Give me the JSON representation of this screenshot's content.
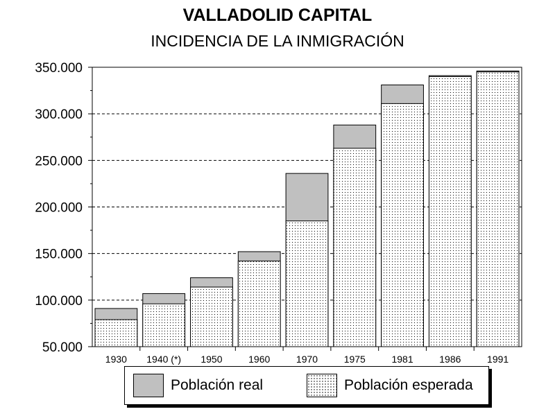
{
  "chart_data": {
    "type": "bar",
    "title": "VALLADOLID CAPITAL",
    "subtitle": "INCIDENCIA DE LA INMIGRACIÓN",
    "categories": [
      "1930",
      "1940 (*)",
      "1950",
      "1960",
      "1970",
      "1975",
      "1981",
      "1986",
      "1991"
    ],
    "series": [
      {
        "name": "Población real",
        "values": [
          91000,
          107000,
          124000,
          152000,
          236000,
          288000,
          331000,
          341000,
          346000
        ],
        "color": "#c0c0c0",
        "pattern": "solid"
      },
      {
        "name": "Población esperada",
        "values": [
          79000,
          96000,
          114000,
          142000,
          185000,
          263000,
          311000,
          340000,
          345000
        ],
        "color": "#ffffff",
        "pattern": "dotted"
      }
    ],
    "ylim": [
      50000,
      350000
    ],
    "yticks": [
      {
        "value": 50000,
        "label": "50.000"
      },
      {
        "value": 100000,
        "label": "100.000"
      },
      {
        "value": 150000,
        "label": "150.000"
      },
      {
        "value": 200000,
        "label": "200.000"
      },
      {
        "value": 250000,
        "label": "250.000"
      },
      {
        "value": 300000,
        "label": "300.000"
      },
      {
        "value": 350000,
        "label": "350.000"
      }
    ],
    "grid": "horizontal dashed",
    "legend_position": "bottom"
  }
}
